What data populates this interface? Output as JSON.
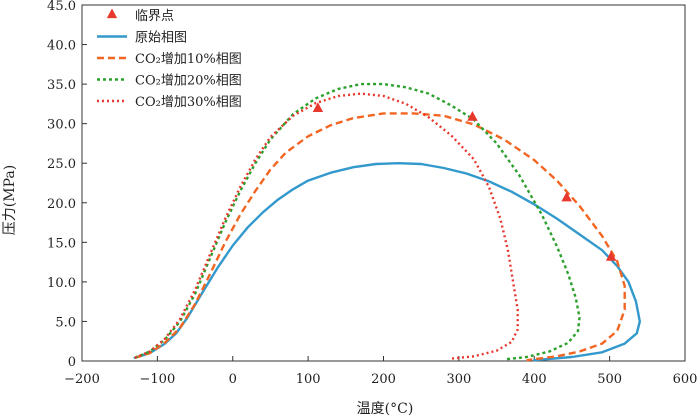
{
  "chart_data": {
    "type": "line",
    "xlabel": "温度(°C)",
    "ylabel": "压力(MPa)",
    "xlim": [
      -200,
      600
    ],
    "ylim": [
      0,
      45
    ],
    "x_ticks": [
      -200,
      -100,
      0,
      100,
      200,
      300,
      400,
      500,
      600
    ],
    "y_ticks": [
      0,
      5.0,
      10.0,
      15.0,
      20.0,
      25.0,
      30.0,
      35.0,
      40.0,
      45.0
    ],
    "legend_position": "top-left",
    "critical_points": {
      "name": "临界点",
      "color": "#e8372c",
      "points": [
        [
          113,
          32.0
        ],
        [
          318,
          30.9
        ],
        [
          443,
          20.7
        ],
        [
          502,
          13.2
        ]
      ]
    },
    "series": [
      {
        "name": "原始相图",
        "color": "#3399cc",
        "style": "solid",
        "points": [
          [
            -130,
            0.4
          ],
          [
            -110,
            1.0
          ],
          [
            -90,
            2.2
          ],
          [
            -75,
            3.5
          ],
          [
            -60,
            5.5
          ],
          [
            -40,
            8.7
          ],
          [
            -20,
            11.8
          ],
          [
            0,
            14.6
          ],
          [
            20,
            16.9
          ],
          [
            40,
            18.8
          ],
          [
            60,
            20.4
          ],
          [
            80,
            21.7
          ],
          [
            100,
            22.8
          ],
          [
            130,
            23.8
          ],
          [
            160,
            24.5
          ],
          [
            190,
            24.9
          ],
          [
            220,
            25.0
          ],
          [
            250,
            24.9
          ],
          [
            280,
            24.4
          ],
          [
            310,
            23.7
          ],
          [
            340,
            22.7
          ],
          [
            370,
            21.4
          ],
          [
            400,
            19.8
          ],
          [
            430,
            18.0
          ],
          [
            460,
            16.0
          ],
          [
            490,
            14.0
          ],
          [
            510,
            12.0
          ],
          [
            525,
            10.0
          ],
          [
            535,
            7.5
          ],
          [
            540,
            5.0
          ],
          [
            536,
            3.5
          ],
          [
            520,
            2.2
          ],
          [
            490,
            1.1
          ],
          [
            450,
            0.5
          ],
          [
            400,
            0.1
          ]
        ]
      },
      {
        "name": "CO₂增加10%相图",
        "color": "#f26522",
        "style": "dashed",
        "points": [
          [
            -130,
            0.4
          ],
          [
            -110,
            1.0
          ],
          [
            -90,
            2.3
          ],
          [
            -70,
            4.2
          ],
          [
            -50,
            7.2
          ],
          [
            -30,
            11.0
          ],
          [
            -10,
            15.0
          ],
          [
            10,
            18.5
          ],
          [
            30,
            21.5
          ],
          [
            50,
            24.2
          ],
          [
            70,
            26.3
          ],
          [
            100,
            28.4
          ],
          [
            130,
            29.8
          ],
          [
            160,
            30.7
          ],
          [
            200,
            31.3
          ],
          [
            240,
            31.3
          ],
          [
            280,
            31.0
          ],
          [
            320,
            29.9
          ],
          [
            360,
            28.0
          ],
          [
            400,
            25.4
          ],
          [
            430,
            22.8
          ],
          [
            460,
            19.6
          ],
          [
            490,
            15.8
          ],
          [
            510,
            12.6
          ],
          [
            520,
            9.5
          ],
          [
            520,
            6.5
          ],
          [
            510,
            3.8
          ],
          [
            490,
            2.2
          ],
          [
            460,
            1.2
          ],
          [
            430,
            0.6
          ],
          [
            390,
            0.1
          ]
        ]
      },
      {
        "name": "CO₂增加20%相图",
        "color": "#2ca02c",
        "style": "dotted-dash",
        "points": [
          [
            -130,
            0.4
          ],
          [
            -110,
            1.2
          ],
          [
            -90,
            2.7
          ],
          [
            -70,
            5.0
          ],
          [
            -50,
            8.5
          ],
          [
            -30,
            13.0
          ],
          [
            -10,
            17.5
          ],
          [
            10,
            21.5
          ],
          [
            30,
            25.0
          ],
          [
            50,
            28.0
          ],
          [
            80,
            31.2
          ],
          [
            110,
            33.2
          ],
          [
            140,
            34.4
          ],
          [
            170,
            35.0
          ],
          [
            200,
            35.0
          ],
          [
            230,
            34.6
          ],
          [
            260,
            33.8
          ],
          [
            290,
            32.3
          ],
          [
            320,
            30.5
          ],
          [
            350,
            27.5
          ],
          [
            380,
            23.5
          ],
          [
            410,
            18.5
          ],
          [
            430,
            14.5
          ],
          [
            445,
            11.0
          ],
          [
            455,
            8.0
          ],
          [
            460,
            5.5
          ],
          [
            458,
            3.8
          ],
          [
            445,
            2.3
          ],
          [
            420,
            1.2
          ],
          [
            390,
            0.5
          ],
          [
            360,
            0.2
          ]
        ]
      },
      {
        "name": "CO₂增加30%相图",
        "color": "#e8372c",
        "style": "dotted",
        "points": [
          [
            -130,
            0.4
          ],
          [
            -110,
            1.2
          ],
          [
            -90,
            2.8
          ],
          [
            -70,
            5.3
          ],
          [
            -50,
            9.0
          ],
          [
            -30,
            13.5
          ],
          [
            -10,
            18.0
          ],
          [
            10,
            22.0
          ],
          [
            30,
            25.5
          ],
          [
            50,
            28.3
          ],
          [
            80,
            31.0
          ],
          [
            110,
            32.6
          ],
          [
            140,
            33.5
          ],
          [
            170,
            33.8
          ],
          [
            200,
            33.5
          ],
          [
            230,
            32.5
          ],
          [
            260,
            30.8
          ],
          [
            290,
            28.5
          ],
          [
            320,
            25.5
          ],
          [
            340,
            22.0
          ],
          [
            355,
            18.0
          ],
          [
            365,
            14.0
          ],
          [
            372,
            10.0
          ],
          [
            378,
            6.5
          ],
          [
            378,
            4.0
          ],
          [
            370,
            2.4
          ],
          [
            350,
            1.3
          ],
          [
            320,
            0.6
          ],
          [
            290,
            0.3
          ]
        ]
      }
    ]
  }
}
